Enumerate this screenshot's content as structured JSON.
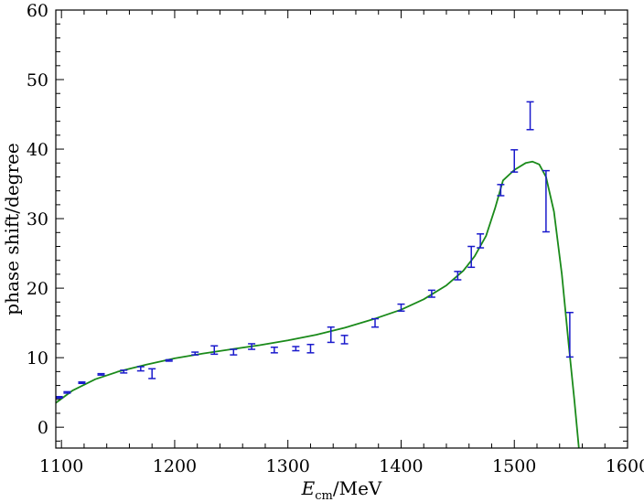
{
  "chart_data": {
    "type": "scatter",
    "title": "",
    "xlabel": {
      "main": "E",
      "sub": "cm",
      "rest": "/MeV"
    },
    "ylabel": "phase shift/degree",
    "xlim": [
      1095,
      1600
    ],
    "ylim": [
      -3,
      60
    ],
    "x_ticks": [
      1100,
      1200,
      1300,
      1400,
      1500,
      1600
    ],
    "y_ticks": [
      0,
      10,
      20,
      30,
      40,
      50,
      60
    ],
    "x_tick_labels": [
      "1100",
      "1200",
      "1300",
      "1400",
      "1500",
      "1600"
    ],
    "y_tick_labels": [
      "0",
      "10",
      "20",
      "30",
      "40",
      "50",
      "60"
    ],
    "grid": false,
    "colors": {
      "data": "#1a1acc",
      "fit": "#1a8a1a",
      "axis": "#000000"
    },
    "series": [
      {
        "kind": "errorbar",
        "points": [
          {
            "x": 1098,
            "y": 4.3,
            "err": 0.1
          },
          {
            "x": 1105,
            "y": 5.0,
            "err": 0.1
          },
          {
            "x": 1118,
            "y": 6.4,
            "err": 0.1
          },
          {
            "x": 1135,
            "y": 7.6,
            "err": 0.1
          },
          {
            "x": 1155,
            "y": 8.0,
            "err": 0.2
          },
          {
            "x": 1170,
            "y": 8.4,
            "err": 0.3
          },
          {
            "x": 1180,
            "y": 7.7,
            "err": 0.7
          },
          {
            "x": 1195,
            "y": 9.6,
            "err": 0.1
          },
          {
            "x": 1218,
            "y": 10.6,
            "err": 0.2
          },
          {
            "x": 1235,
            "y": 11.1,
            "err": 0.6
          },
          {
            "x": 1252,
            "y": 10.8,
            "err": 0.4
          },
          {
            "x": 1268,
            "y": 11.6,
            "err": 0.4
          },
          {
            "x": 1288,
            "y": 11.1,
            "err": 0.4
          },
          {
            "x": 1307,
            "y": 11.3,
            "err": 0.3
          },
          {
            "x": 1320,
            "y": 11.3,
            "err": 0.6
          },
          {
            "x": 1338,
            "y": 13.3,
            "err": 1.1
          },
          {
            "x": 1350,
            "y": 12.6,
            "err": 0.6
          },
          {
            "x": 1377,
            "y": 15.0,
            "err": 0.6
          },
          {
            "x": 1400,
            "y": 17.2,
            "err": 0.5
          },
          {
            "x": 1427,
            "y": 19.2,
            "err": 0.5
          },
          {
            "x": 1450,
            "y": 21.8,
            "err": 0.6
          },
          {
            "x": 1462,
            "y": 24.5,
            "err": 1.5
          },
          {
            "x": 1470,
            "y": 26.8,
            "err": 1.0
          },
          {
            "x": 1488,
            "y": 34.1,
            "err": 0.8
          },
          {
            "x": 1500,
            "y": 38.3,
            "err": 1.6
          },
          {
            "x": 1514,
            "y": 44.8,
            "err": 2.0
          },
          {
            "x": 1528,
            "y": 32.5,
            "err": 4.4
          },
          {
            "x": 1549,
            "y": 13.3,
            "err": 3.2
          }
        ]
      },
      {
        "kind": "line",
        "points": [
          [
            1095,
            3.5
          ],
          [
            1110,
            5.3
          ],
          [
            1130,
            6.9
          ],
          [
            1150,
            8.0
          ],
          [
            1175,
            9.0
          ],
          [
            1200,
            9.9
          ],
          [
            1225,
            10.6
          ],
          [
            1250,
            11.2
          ],
          [
            1275,
            11.8
          ],
          [
            1300,
            12.5
          ],
          [
            1325,
            13.3
          ],
          [
            1350,
            14.3
          ],
          [
            1375,
            15.5
          ],
          [
            1400,
            16.9
          ],
          [
            1420,
            18.4
          ],
          [
            1440,
            20.4
          ],
          [
            1455,
            22.5
          ],
          [
            1465,
            24.6
          ],
          [
            1475,
            27.5
          ],
          [
            1483,
            31.5
          ],
          [
            1490,
            35.5
          ],
          [
            1500,
            37.0
          ],
          [
            1510,
            38.0
          ],
          [
            1516,
            38.2
          ],
          [
            1522,
            37.8
          ],
          [
            1528,
            36.0
          ],
          [
            1535,
            31.0
          ],
          [
            1542,
            22.0
          ],
          [
            1548,
            12.0
          ],
          [
            1553,
            4.0
          ],
          [
            1557,
            -3.0
          ]
        ]
      }
    ]
  }
}
